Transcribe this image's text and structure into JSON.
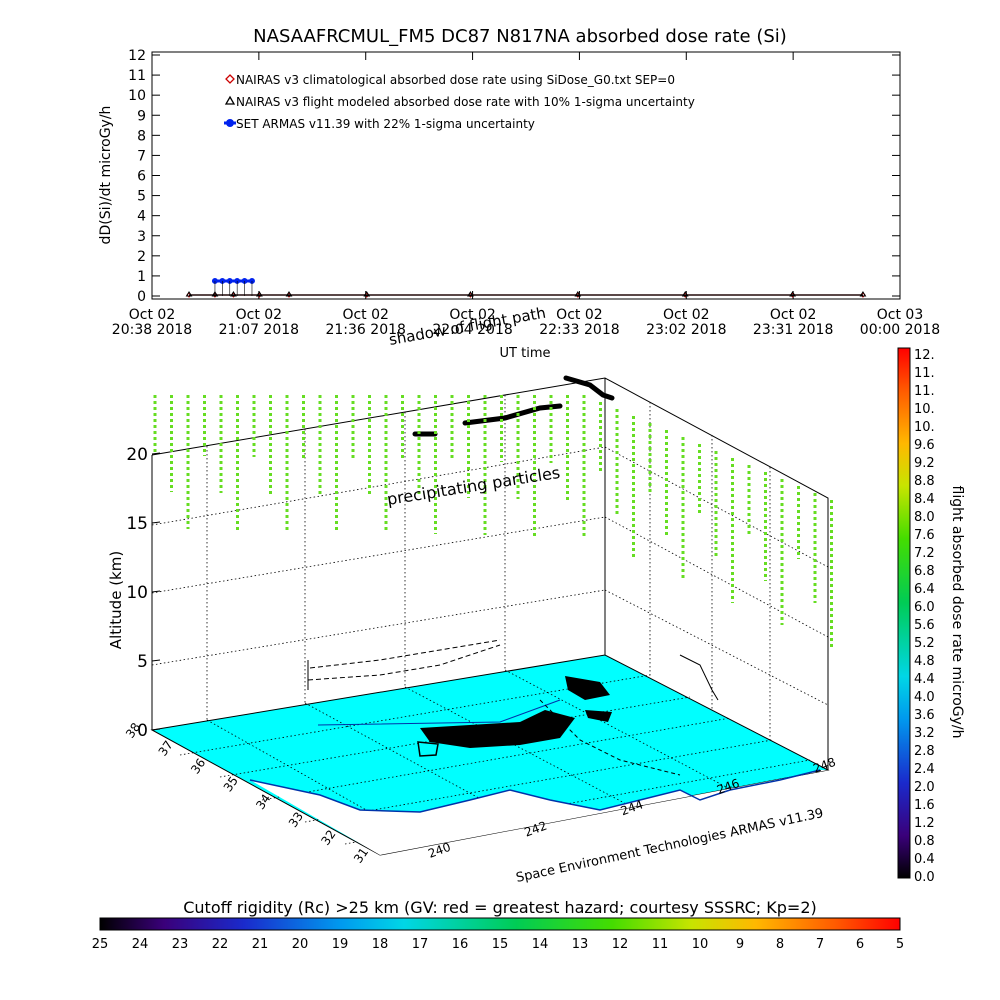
{
  "chart_data": [
    {
      "type": "line",
      "title": "NASAAFRCMUL_FM5 DC87 N817NA absorbed dose rate (Si)",
      "xlabel": "UT time",
      "ylabel": "dD(Si)/dt microGy/h",
      "ylim": [
        0,
        12
      ],
      "yticks": [
        "0",
        "1",
        "2",
        "3",
        "4",
        "5",
        "6",
        "7",
        "8",
        "9",
        "10",
        "11",
        "12"
      ],
      "xticks": [
        {
          "date": "Oct 02",
          "time": "20:38 2018"
        },
        {
          "date": "Oct 02",
          "time": "21:07 2018"
        },
        {
          "date": "Oct 02",
          "time": "21:36 2018"
        },
        {
          "date": "Oct 02",
          "time": "22:04 2018"
        },
        {
          "date": "Oct 02",
          "time": "22:33 2018"
        },
        {
          "date": "Oct 02",
          "time": "23:02 2018"
        },
        {
          "date": "Oct 02",
          "time": "23:31 2018"
        },
        {
          "date": "Oct 03",
          "time": "00:00 2018"
        }
      ],
      "legend_position": "top-left",
      "series": [
        {
          "name": "NAIRAS v3 climatological absorbed dose rate using SiDose_G0.txt SEP=0",
          "color": "#cc0000",
          "marker": "diamond",
          "x": [
            "20:48",
            "20:55",
            "21:00",
            "21:07",
            "21:15",
            "21:36",
            "22:04",
            "22:33",
            "23:02",
            "23:31",
            "23:50"
          ],
          "y": [
            0.05,
            0.05,
            0.05,
            0.05,
            0.05,
            0.05,
            0.05,
            0.05,
            0.05,
            0.05,
            0.05
          ]
        },
        {
          "name": "NAIRAS v3 flight modeled absorbed dose rate with 10% 1-sigma uncertainty",
          "color": "#000000",
          "marker": "triangle",
          "x": [
            "20:48",
            "20:55",
            "21:00",
            "21:07",
            "21:15",
            "21:36",
            "22:04",
            "22:33",
            "23:02",
            "23:31",
            "23:50"
          ],
          "y": [
            0.05,
            0.05,
            0.05,
            0.05,
            0.05,
            0.05,
            0.05,
            0.05,
            0.05,
            0.05,
            0.05
          ]
        },
        {
          "name": "SET ARMAS v11.39 with 22% 1-sigma uncertainty",
          "color": "#0022ee",
          "marker": "circle",
          "x": [
            "20:55",
            "20:57",
            "20:59",
            "21:01",
            "21:03",
            "21:05"
          ],
          "y": [
            0.75,
            0.75,
            0.75,
            0.75,
            0.75,
            0.75
          ]
        }
      ]
    },
    {
      "type": "scatter",
      "ylabel": "Altitude (km)",
      "zticks": [
        "0",
        "5",
        "10",
        "15",
        "20"
      ],
      "lat_ticks": [
        "38",
        "37",
        "36",
        "35",
        "34",
        "33",
        "32",
        "31"
      ],
      "lon_ticks": [
        "240",
        "242",
        "244",
        "246",
        "248"
      ],
      "annotations": [
        "precipitating particles",
        "shadow of flight path"
      ],
      "credit": "Space Environment Technologies ARMAS v11.39",
      "colorbar": {
        "label": "flight absorbed dose rate microGy/h",
        "ticks": [
          "0.0",
          "0.4",
          "0.8",
          "1.2",
          "1.6",
          "2.0",
          "2.4",
          "2.8",
          "3.2",
          "3.6",
          "4.0",
          "4.4",
          "4.8",
          "5.2",
          "5.6",
          "6.0",
          "6.4",
          "6.8",
          "7.2",
          "7.6",
          "8.0",
          "8.4",
          "8.8",
          "9.2",
          "9.6",
          "10.",
          "10.",
          "11.",
          "11.",
          "12."
        ]
      },
      "rigidity_bar": {
        "label": "Cutoff rigidity (Rc) >25 km (GV: red = greatest hazard; courtesy SSSRC; Kp=2)",
        "ticks": [
          "25",
          "24",
          "23",
          "22",
          "21",
          "20",
          "19",
          "18",
          "17",
          "16",
          "15",
          "14",
          "13",
          "12",
          "11",
          "10",
          "9",
          "8",
          "7",
          "6",
          "5"
        ]
      },
      "ground_color": "#00ffff",
      "particle_color": "#66dd22"
    }
  ]
}
